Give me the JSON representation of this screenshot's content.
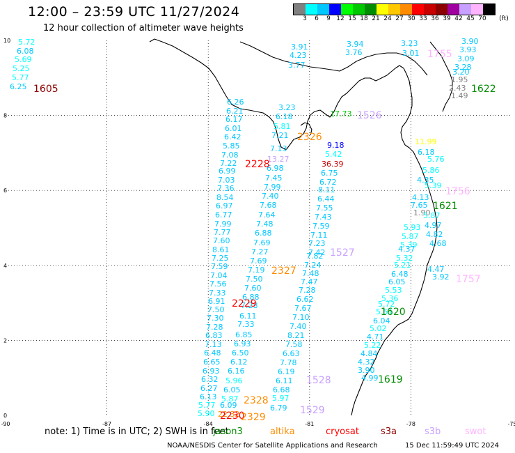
{
  "header": {
    "title": "12:00 – 23:59 UTC 11/27/2024",
    "subtitle": "12 hour collection of altimeter wave heights"
  },
  "color_scale": {
    "unit_label": "(ft)",
    "ticks": [
      "3",
      "6",
      "9",
      "12",
      "15",
      "18",
      "21",
      "24",
      "27",
      "30",
      "33",
      "36",
      "39",
      "42",
      "45",
      "70"
    ],
    "colors": [
      "#808080",
      "#00ffff",
      "#00c8ff",
      "#0000ff",
      "#00ff00",
      "#00c800",
      "#008c00",
      "#ffff00",
      "#ffc800",
      "#ff8c00",
      "#ff0000",
      "#c80000",
      "#8c0000",
      "#a000a0",
      "#c8a0ff",
      "#ffb4ff",
      "#000000"
    ]
  },
  "map": {
    "x_ticks": [
      "-90",
      "-87",
      "-84",
      "-81",
      "-78",
      "-75"
    ],
    "y_ticks": [
      "0",
      "2",
      "4",
      "6",
      "8",
      "10"
    ],
    "x_range": [
      -90,
      -75
    ],
    "y_range": [
      0,
      10
    ],
    "grid": true
  },
  "note": {
    "prefix": "note:  1) Time is in UTC;  2) SWH is in feet",
    "satellites": [
      {
        "name": "jason3",
        "color": "#008c00"
      },
      {
        "name": "altika",
        "color": "#ff8c00"
      },
      {
        "name": "cryosat",
        "color": "#ff0000"
      },
      {
        "name": "s3a",
        "color": "#8c0000"
      },
      {
        "name": "s3b",
        "color": "#c8a0ff"
      },
      {
        "name": "swot",
        "color": "#ffb4ff"
      }
    ]
  },
  "footer": {
    "credit": "NOAA/NESDIS Center for Satellite Applications and Research",
    "timestamp": "15 Dec 11:59:49 UTC 2024"
  },
  "pass_times": [
    {
      "text": "1605",
      "color": "#8c0000"
    },
    {
      "text": "1755",
      "color": "#ffb4ff"
    },
    {
      "text": "1622",
      "color": "#008c00"
    },
    {
      "text": "1526",
      "color": "#c8a0ff"
    },
    {
      "text": "2326",
      "color": "#ff8c00"
    },
    {
      "text": "2228",
      "color": "#ff0000"
    },
    {
      "text": "1756",
      "color": "#ffb4ff"
    },
    {
      "text": "1621",
      "color": "#008c00"
    },
    {
      "text": "1527",
      "color": "#c8a0ff"
    },
    {
      "text": "2327",
      "color": "#ff8c00"
    },
    {
      "text": "1757",
      "color": "#ffb4ff"
    },
    {
      "text": "2229",
      "color": "#ff0000"
    },
    {
      "text": "1620",
      "color": "#008c00"
    },
    {
      "text": "1619",
      "color": "#008c00"
    },
    {
      "text": "1528",
      "color": "#c8a0ff"
    },
    {
      "text": "2328",
      "color": "#ff8c00"
    },
    {
      "text": "1529",
      "color": "#c8a0ff"
    },
    {
      "text": "2230",
      "color": "#ff0000"
    },
    {
      "text": "2329",
      "color": "#ff8c00"
    }
  ],
  "wave_heights": [
    {
      "v": "5.72",
      "c": "#00ffff"
    },
    {
      "v": "6.08",
      "c": "#00c8ff"
    },
    {
      "v": "5.69",
      "c": "#00ffff"
    },
    {
      "v": "5.25",
      "c": "#00ffff"
    },
    {
      "v": "5.77",
      "c": "#00ffff"
    },
    {
      "v": "6.25",
      "c": "#00c8ff"
    },
    {
      "v": "3.91",
      "c": "#00c8ff"
    },
    {
      "v": "4.23",
      "c": "#00c8ff"
    },
    {
      "v": "3.77",
      "c": "#00c8ff"
    },
    {
      "v": "3.94",
      "c": "#00c8ff"
    },
    {
      "v": "3.76",
      "c": "#00c8ff"
    },
    {
      "v": "3.23",
      "c": "#00c8ff"
    },
    {
      "v": "3.01",
      "c": "#00c8ff"
    },
    {
      "v": "3.90",
      "c": "#00c8ff"
    },
    {
      "v": "3.93",
      "c": "#00c8ff"
    },
    {
      "v": "3.09",
      "c": "#00c8ff"
    },
    {
      "v": "3.28",
      "c": "#00c8ff"
    },
    {
      "v": "3.20",
      "c": "#00c8ff"
    },
    {
      "v": "1.95",
      "c": "#808080"
    },
    {
      "v": "2.43",
      "c": "#808080"
    },
    {
      "v": "1.49",
      "c": "#808080"
    },
    {
      "v": "6.26",
      "c": "#00c8ff"
    },
    {
      "v": "6.21",
      "c": "#00c8ff"
    },
    {
      "v": "6.17",
      "c": "#00c8ff"
    },
    {
      "v": "6.01",
      "c": "#00c8ff"
    },
    {
      "v": "6.42",
      "c": "#00c8ff"
    },
    {
      "v": "5.85",
      "c": "#00c8ff"
    },
    {
      "v": "7.08",
      "c": "#00c8ff"
    },
    {
      "v": "7.22",
      "c": "#00c8ff"
    },
    {
      "v": "6.99",
      "c": "#00c8ff"
    },
    {
      "v": "7.03",
      "c": "#00c8ff"
    },
    {
      "v": "7.36",
      "c": "#00c8ff"
    },
    {
      "v": "8.54",
      "c": "#00c8ff"
    },
    {
      "v": "6.97",
      "c": "#00c8ff"
    },
    {
      "v": "6.77",
      "c": "#00c8ff"
    },
    {
      "v": "7.99",
      "c": "#00c8ff"
    },
    {
      "v": "7.77",
      "c": "#00c8ff"
    },
    {
      "v": "7.60",
      "c": "#00c8ff"
    },
    {
      "v": "8.61",
      "c": "#00c8ff"
    },
    {
      "v": "7.25",
      "c": "#00c8ff"
    },
    {
      "v": "7.59",
      "c": "#00c8ff"
    },
    {
      "v": "7.04",
      "c": "#00c8ff"
    },
    {
      "v": "7.56",
      "c": "#00c8ff"
    },
    {
      "v": "7.33",
      "c": "#00c8ff"
    },
    {
      "v": "6.91",
      "c": "#00c8ff"
    },
    {
      "v": "7.50",
      "c": "#00c8ff"
    },
    {
      "v": "7.30",
      "c": "#00c8ff"
    },
    {
      "v": "7.28",
      "c": "#00c8ff"
    },
    {
      "v": "6.83",
      "c": "#00c8ff"
    },
    {
      "v": "7.13",
      "c": "#00c8ff"
    },
    {
      "v": "6.48",
      "c": "#00c8ff"
    },
    {
      "v": "6.65",
      "c": "#00c8ff"
    },
    {
      "v": "6.93",
      "c": "#00c8ff"
    },
    {
      "v": "6.32",
      "c": "#00c8ff"
    },
    {
      "v": "6.27",
      "c": "#00c8ff"
    },
    {
      "v": "6.13",
      "c": "#00c8ff"
    },
    {
      "v": "5.77",
      "c": "#00ffff"
    },
    {
      "v": "5.90",
      "c": "#00ffff"
    },
    {
      "v": "3.23",
      "c": "#00c8ff"
    },
    {
      "v": "6.18",
      "c": "#00c8ff"
    },
    {
      "v": "5.81",
      "c": "#00ffff"
    },
    {
      "v": "7.21",
      "c": "#00c8ff"
    },
    {
      "v": "7.13",
      "c": "#00c8ff"
    },
    {
      "v": "13.27",
      "c": "#c8a0ff"
    },
    {
      "v": "6.98",
      "c": "#00c8ff"
    },
    {
      "v": "7.45",
      "c": "#00c8ff"
    },
    {
      "v": "7.99",
      "c": "#00c8ff"
    },
    {
      "v": "7.40",
      "c": "#00c8ff"
    },
    {
      "v": "7.68",
      "c": "#00c8ff"
    },
    {
      "v": "7.64",
      "c": "#00c8ff"
    },
    {
      "v": "7.48",
      "c": "#00c8ff"
    },
    {
      "v": "6.88",
      "c": "#00c8ff"
    },
    {
      "v": "7.69",
      "c": "#00c8ff"
    },
    {
      "v": "7.27",
      "c": "#00c8ff"
    },
    {
      "v": "7.69",
      "c": "#00c8ff"
    },
    {
      "v": "7.19",
      "c": "#00c8ff"
    },
    {
      "v": "7.50",
      "c": "#00c8ff"
    },
    {
      "v": "7.60",
      "c": "#00c8ff"
    },
    {
      "v": "6.88",
      "c": "#00c8ff"
    },
    {
      "v": "7.28",
      "c": "#00c8ff"
    },
    {
      "v": "6.11",
      "c": "#00c8ff"
    },
    {
      "v": "7.33",
      "c": "#00c8ff"
    },
    {
      "v": "6.85",
      "c": "#00c8ff"
    },
    {
      "v": "6.93",
      "c": "#00c8ff"
    },
    {
      "v": "6.50",
      "c": "#00c8ff"
    },
    {
      "v": "6.12",
      "c": "#00c8ff"
    },
    {
      "v": "6.16",
      "c": "#00c8ff"
    },
    {
      "v": "5.96",
      "c": "#00ffff"
    },
    {
      "v": "6.05",
      "c": "#00c8ff"
    },
    {
      "v": "5.87",
      "c": "#00ffff"
    },
    {
      "v": "6.09",
      "c": "#00c8ff"
    },
    {
      "v": "22.32",
      "c": "#ff8c00"
    },
    {
      "v": "17.73",
      "c": "#00c800"
    },
    {
      "v": "9.18",
      "c": "#0000ff"
    },
    {
      "v": "5.42",
      "c": "#00ffff"
    },
    {
      "v": "36.39",
      "c": "#c80000"
    },
    {
      "v": "6.75",
      "c": "#00c8ff"
    },
    {
      "v": "6.72",
      "c": "#00c8ff"
    },
    {
      "v": "8.11",
      "c": "#00c8ff"
    },
    {
      "v": "6.44",
      "c": "#00c8ff"
    },
    {
      "v": "7.55",
      "c": "#00c8ff"
    },
    {
      "v": "7.43",
      "c": "#00c8ff"
    },
    {
      "v": "7.59",
      "c": "#00c8ff"
    },
    {
      "v": "7.11",
      "c": "#00c8ff"
    },
    {
      "v": "7.23",
      "c": "#00c8ff"
    },
    {
      "v": "7.42",
      "c": "#00c8ff"
    },
    {
      "v": "7.82",
      "c": "#00c8ff"
    },
    {
      "v": "7.24",
      "c": "#00c8ff"
    },
    {
      "v": "7.48",
      "c": "#00c8ff"
    },
    {
      "v": "7.47",
      "c": "#00c8ff"
    },
    {
      "v": "7.28",
      "c": "#00c8ff"
    },
    {
      "v": "6.62",
      "c": "#00c8ff"
    },
    {
      "v": "7.67",
      "c": "#00c8ff"
    },
    {
      "v": "7.10",
      "c": "#00c8ff"
    },
    {
      "v": "7.40",
      "c": "#00c8ff"
    },
    {
      "v": "8.21",
      "c": "#00c8ff"
    },
    {
      "v": "7.58",
      "c": "#00c8ff"
    },
    {
      "v": "6.63",
      "c": "#00c8ff"
    },
    {
      "v": "7.78",
      "c": "#00c8ff"
    },
    {
      "v": "6.19",
      "c": "#00c8ff"
    },
    {
      "v": "6.11",
      "c": "#00c8ff"
    },
    {
      "v": "6.68",
      "c": "#00c8ff"
    },
    {
      "v": "5.97",
      "c": "#00ffff"
    },
    {
      "v": "6.79",
      "c": "#00c8ff"
    },
    {
      "v": "11.99",
      "c": "#ffff00"
    },
    {
      "v": "6.18",
      "c": "#00c8ff"
    },
    {
      "v": "5.76",
      "c": "#00ffff"
    },
    {
      "v": "5.86",
      "c": "#00ffff"
    },
    {
      "v": "4.35",
      "c": "#00c8ff"
    },
    {
      "v": "5.39",
      "c": "#00ffff"
    },
    {
      "v": "4.13",
      "c": "#00c8ff"
    },
    {
      "v": "7.65",
      "c": "#00c8ff"
    },
    {
      "v": "1.90",
      "c": "#808080"
    },
    {
      "v": "5.87",
      "c": "#00ffff"
    },
    {
      "v": "4.97",
      "c": "#00c8ff"
    },
    {
      "v": "4.82",
      "c": "#00c8ff"
    },
    {
      "v": "4.68",
      "c": "#00c8ff"
    },
    {
      "v": "5.93",
      "c": "#00ffff"
    },
    {
      "v": "5.87",
      "c": "#00ffff"
    },
    {
      "v": "5.39",
      "c": "#00ffff"
    },
    {
      "v": "4.37",
      "c": "#00c8ff"
    },
    {
      "v": "5.32",
      "c": "#00ffff"
    },
    {
      "v": "5.21",
      "c": "#00ffff"
    },
    {
      "v": "6.48",
      "c": "#00c8ff"
    },
    {
      "v": "6.05",
      "c": "#00c8ff"
    },
    {
      "v": "5.53",
      "c": "#00ffff"
    },
    {
      "v": "5.36",
      "c": "#00ffff"
    },
    {
      "v": "5.72",
      "c": "#00ffff"
    },
    {
      "v": "5.51",
      "c": "#00ffff"
    },
    {
      "v": "6.04",
      "c": "#00c8ff"
    },
    {
      "v": "5.02",
      "c": "#00ffff"
    },
    {
      "v": "4.71",
      "c": "#00c8ff"
    },
    {
      "v": "5.22",
      "c": "#00ffff"
    },
    {
      "v": "4.84",
      "c": "#00c8ff"
    },
    {
      "v": "4.32",
      "c": "#00c8ff"
    },
    {
      "v": "3.90",
      "c": "#00c8ff"
    },
    {
      "v": "4.99",
      "c": "#00c8ff"
    },
    {
      "v": "4.47",
      "c": "#00c8ff"
    },
    {
      "v": "3.92",
      "c": "#00c8ff"
    },
    {
      "v": "1.71",
      "c": "#808080"
    }
  ]
}
